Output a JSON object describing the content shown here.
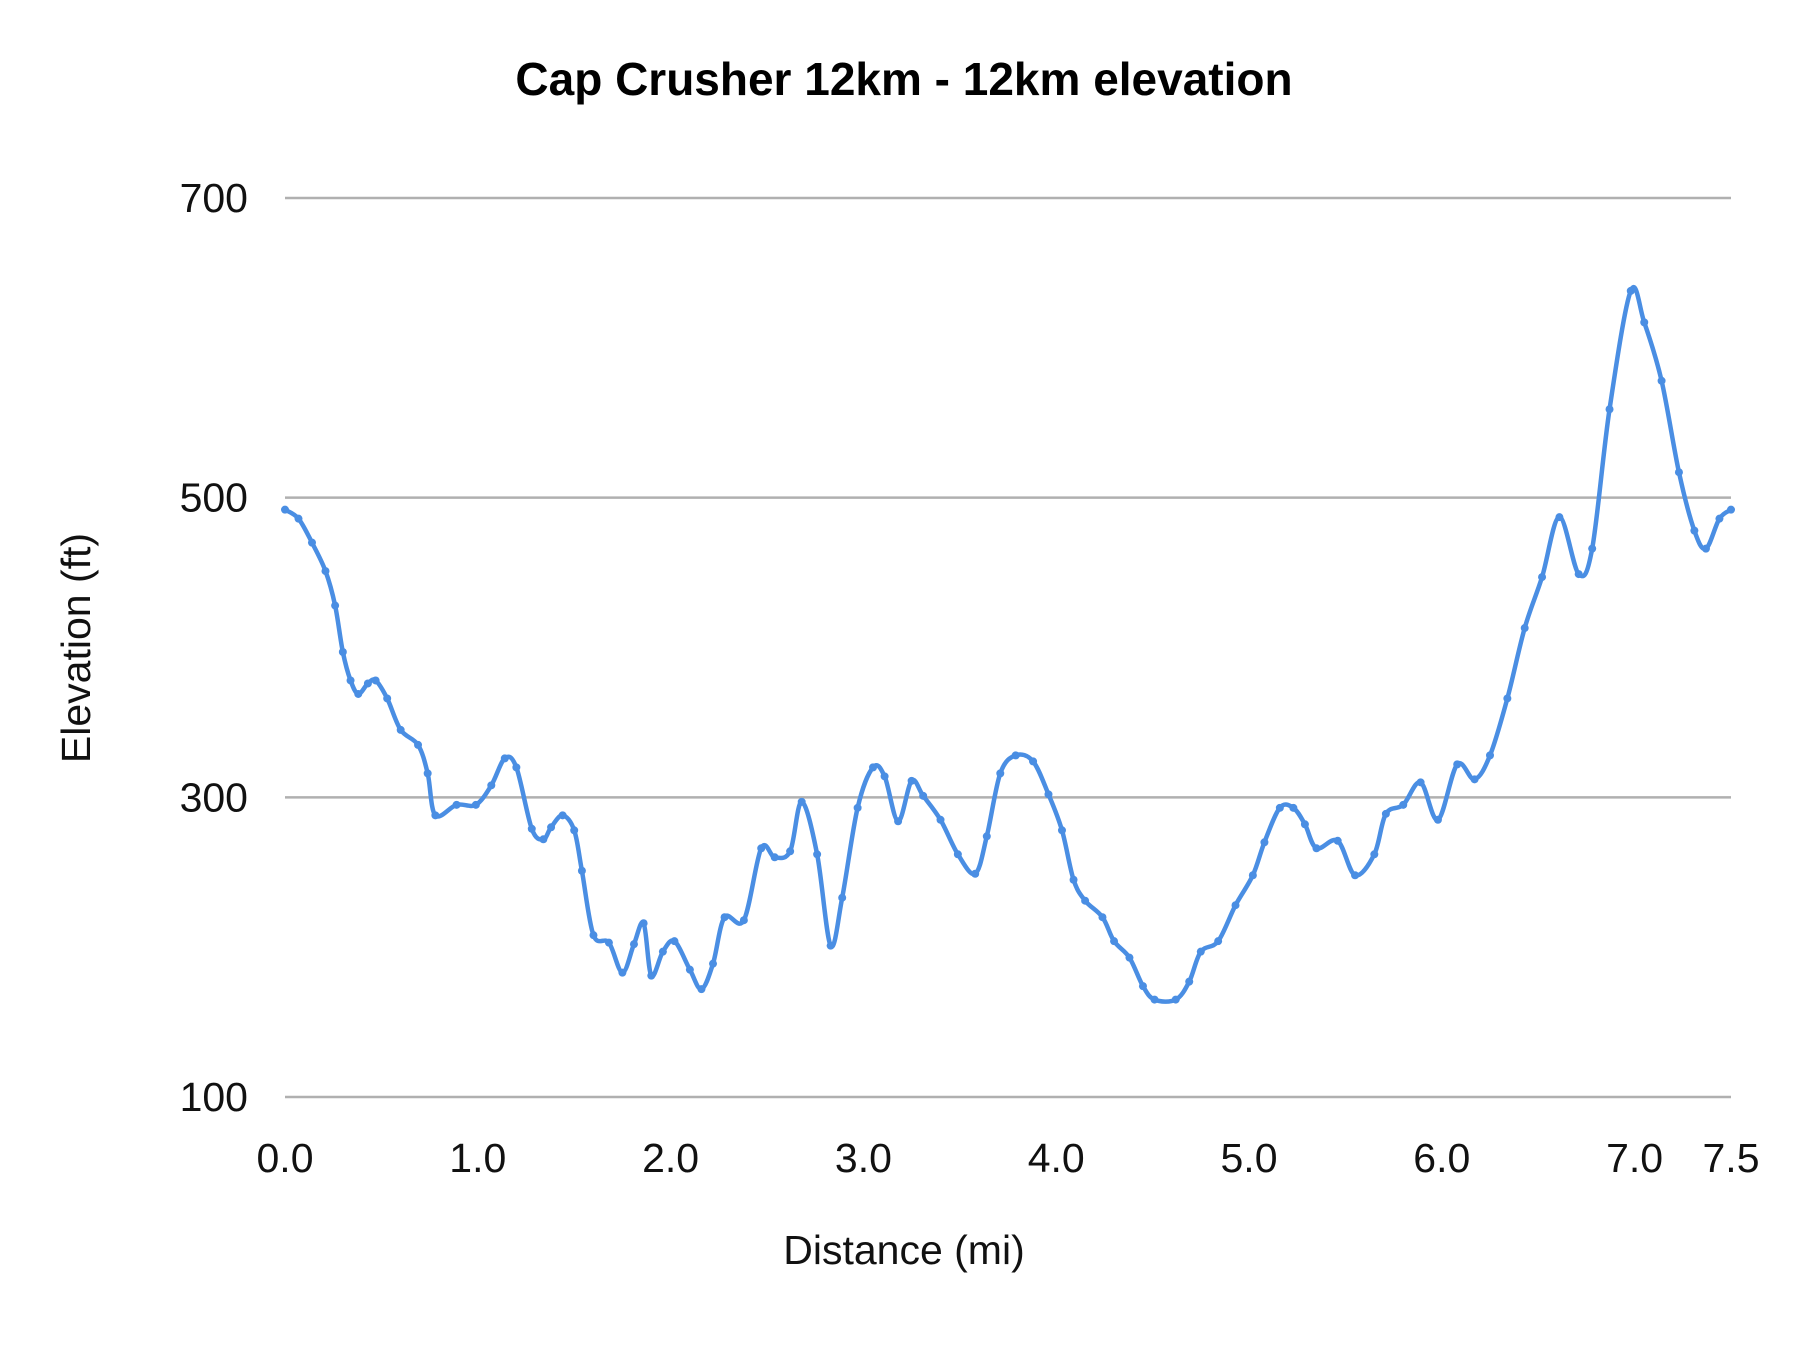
{
  "chart_data": {
    "type": "line",
    "title": "Cap Crusher 12km - 12km elevation",
    "xlabel": "Distance (mi)",
    "ylabel": "Elevation (ft)",
    "xlim": [
      0,
      7.5
    ],
    "ylim": [
      100,
      700
    ],
    "x_ticks": [
      "0.0",
      "1.0",
      "2.0",
      "3.0",
      "4.0",
      "5.0",
      "6.0",
      "7.0",
      "7.5"
    ],
    "x_tick_values": [
      0,
      1,
      2,
      3,
      4,
      5,
      6,
      7,
      7.5
    ],
    "y_ticks": [
      "100",
      "300",
      "500",
      "700"
    ],
    "y_tick_values": [
      100,
      300,
      500,
      700
    ],
    "grid": "horizontal",
    "legend": "none",
    "color": "#4a8ee3",
    "markers": true,
    "x": [
      0,
      0.07,
      0.14,
      0.21,
      0.26,
      0.3,
      0.34,
      0.38,
      0.43,
      0.47,
      0.53,
      0.6,
      0.69,
      0.74,
      0.78,
      0.89,
      0.99,
      1.07,
      1.14,
      1.2,
      1.28,
      1.34,
      1.38,
      1.44,
      1.5,
      1.54,
      1.6,
      1.68,
      1.75,
      1.81,
      1.86,
      1.9,
      1.96,
      2.02,
      2.1,
      2.16,
      2.22,
      2.28,
      2.38,
      2.47,
      2.54,
      2.62,
      2.68,
      2.76,
      2.83,
      2.89,
      2.97,
      3.05,
      3.11,
      3.18,
      3.25,
      3.31,
      3.4,
      3.49,
      3.58,
      3.64,
      3.71,
      3.79,
      3.88,
      3.96,
      4.03,
      4.09,
      4.15,
      4.24,
      4.3,
      4.38,
      4.45,
      4.51,
      4.62,
      4.69,
      4.75,
      4.84,
      4.93,
      5.02,
      5.08,
      5.16,
      5.23,
      5.29,
      5.35,
      5.46,
      5.55,
      5.65,
      5.71,
      5.8,
      5.89,
      5.98,
      6.08,
      6.17,
      6.25,
      6.34,
      6.43,
      6.52,
      6.61,
      6.71,
      6.78,
      6.87,
      6.98,
      7.05,
      7.14,
      7.23,
      7.31,
      7.37,
      7.44,
      7.5
    ],
    "y": [
      492,
      486,
      470,
      451,
      428,
      397,
      378,
      369,
      376,
      378,
      366,
      345,
      335,
      316,
      288,
      295,
      295,
      308,
      326,
      320,
      279,
      272,
      280,
      288,
      278,
      251,
      208,
      203,
      183,
      202,
      216,
      181,
      197,
      204,
      185,
      172,
      189,
      220,
      218,
      266,
      260,
      264,
      297,
      262,
      201,
      233,
      293,
      320,
      314,
      284,
      311,
      301,
      285,
      262,
      249,
      274,
      316,
      328,
      324,
      302,
      278,
      245,
      231,
      220,
      204,
      193,
      174,
      165,
      165,
      177,
      197,
      204,
      228,
      248,
      270,
      293,
      293,
      282,
      266,
      271,
      248,
      262,
      289,
      295,
      310,
      285,
      322,
      312,
      328,
      366,
      413,
      447,
      487,
      449,
      466,
      559,
      638,
      617,
      578,
      517,
      478,
      466,
      486,
      492
    ]
  }
}
